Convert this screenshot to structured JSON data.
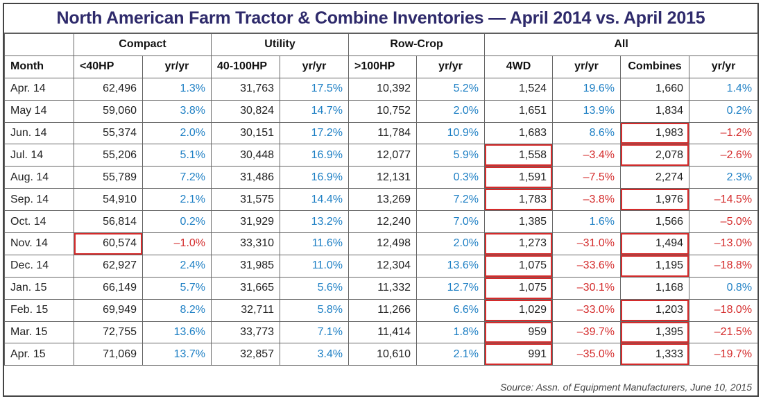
{
  "title": "North American Farm Tractor & Combine Inventories — April 2014 vs. April 2015",
  "groups": [
    "",
    "Compact",
    "Utility",
    "Row-Crop",
    "All"
  ],
  "columns": [
    "Month",
    "<40HP",
    "yr/yr",
    "40-100HP",
    "yr/yr",
    ">100HP",
    "yr/yr",
    "4WD",
    "yr/yr",
    "Combines",
    "yr/yr"
  ],
  "rows": [
    {
      "month": "Apr. 14",
      "v": [
        "62,496",
        "1.3%",
        "31,763",
        "17.5%",
        "10,392",
        "5.2%",
        "1,524",
        "19.6%",
        "1,660",
        "1.4%"
      ]
    },
    {
      "month": "May 14",
      "v": [
        "59,060",
        "3.8%",
        "30,824",
        "14.7%",
        "10,752",
        "2.0%",
        "1,651",
        "13.9%",
        "1,834",
        "0.2%"
      ]
    },
    {
      "month": "Jun. 14",
      "v": [
        "55,374",
        "2.0%",
        "30,151",
        "17.2%",
        "11,784",
        "10.9%",
        "1,683",
        "8.6%",
        "1,983",
        "–1.2%"
      ]
    },
    {
      "month": "Jul. 14",
      "v": [
        "55,206",
        "5.1%",
        "30,448",
        "16.9%",
        "12,077",
        "5.9%",
        "1,558",
        "–3.4%",
        "2,078",
        "–2.6%"
      ]
    },
    {
      "month": "Aug. 14",
      "v": [
        "55,789",
        "7.2%",
        "31,486",
        "16.9%",
        "12,131",
        "0.3%",
        "1,591",
        "–7.5%",
        "2,274",
        "2.3%"
      ]
    },
    {
      "month": "Sep. 14",
      "v": [
        "54,910",
        "2.1%",
        "31,575",
        "14.4%",
        "13,269",
        "7.2%",
        "1,783",
        "–3.8%",
        "1,976",
        "–14.5%"
      ]
    },
    {
      "month": "Oct. 14",
      "v": [
        "56,814",
        "0.2%",
        "31,929",
        "13.2%",
        "12,240",
        "7.0%",
        "1,385",
        "1.6%",
        "1,566",
        "–5.0%"
      ]
    },
    {
      "month": "Nov. 14",
      "v": [
        "60,574",
        "–1.0%",
        "33,310",
        "11.6%",
        "12,498",
        "2.0%",
        "1,273",
        "–31.0%",
        "1,494",
        "–13.0%"
      ]
    },
    {
      "month": "Dec. 14",
      "v": [
        "62,927",
        "2.4%",
        "31,985",
        "11.0%",
        "12,304",
        "13.6%",
        "1,075",
        "–33.6%",
        "1,195",
        "–18.8%"
      ]
    },
    {
      "month": "Jan. 15",
      "v": [
        "66,149",
        "5.7%",
        "31,665",
        "5.6%",
        "11,332",
        "12.7%",
        "1,075",
        "–30.1%",
        "1,168",
        "0.8%"
      ]
    },
    {
      "month": "Feb. 15",
      "v": [
        "69,949",
        "8.2%",
        "32,711",
        "5.8%",
        "11,266",
        "6.6%",
        "1,029",
        "–33.0%",
        "1,203",
        "–18.0%"
      ]
    },
    {
      "month": "Mar. 15",
      "v": [
        "72,755",
        "13.6%",
        "33,773",
        "7.1%",
        "11,414",
        "1.8%",
        "959",
        "–39.7%",
        "1,395",
        "–21.5%"
      ]
    },
    {
      "month": "Apr. 15",
      "v": [
        "71,069",
        "13.7%",
        "32,857",
        "3.4%",
        "10,610",
        "2.1%",
        "991",
        "–35.0%",
        "1,333",
        "–19.7%"
      ]
    }
  ],
  "source": "Source: Assn. of Equipment Manufacturers, June 10, 2015",
  "colors": {
    "positive": "#1d7fc4",
    "negative": "#d42b2b",
    "title": "#2e2a6b"
  }
}
